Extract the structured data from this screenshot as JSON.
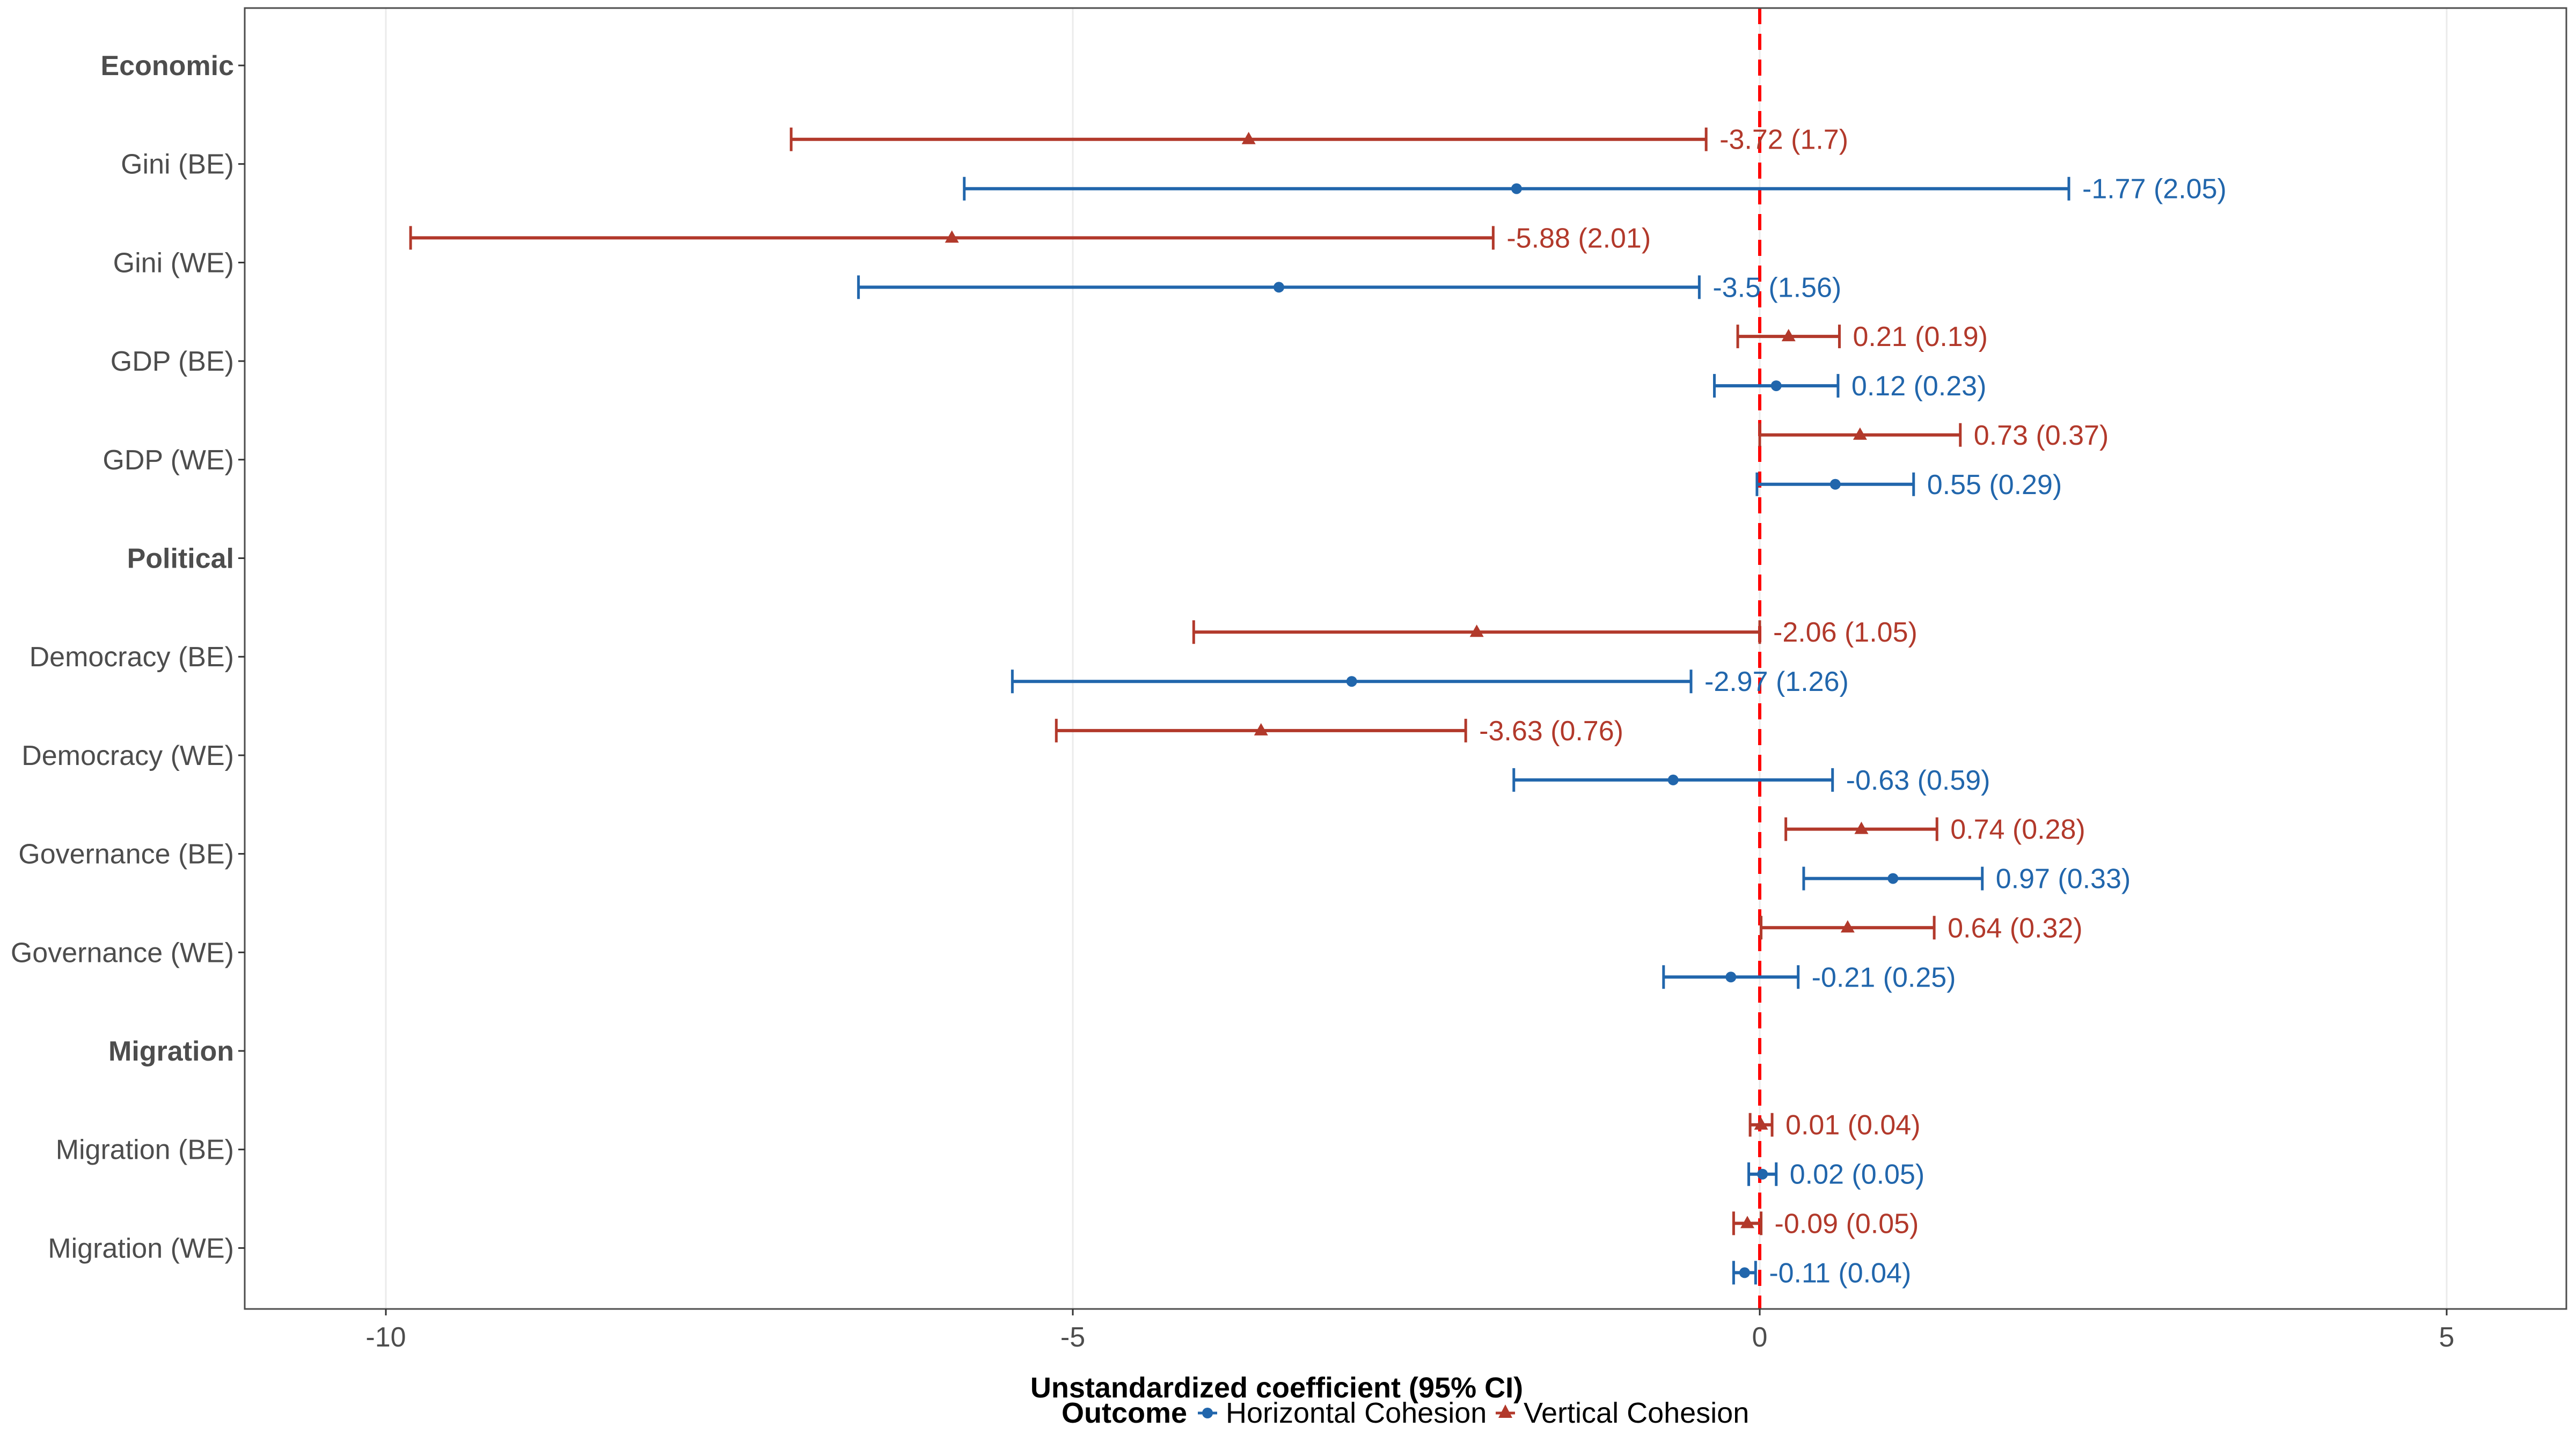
{
  "chart_data": {
    "type": "forest",
    "title": "",
    "xlabel": "Unstandardized coefficient (95% CI)",
    "ylabel": "",
    "xlim": [
      -11,
      5.9
    ],
    "x_ticks": [
      -10,
      -5,
      0,
      5
    ],
    "x_tick_labels": [
      "-10",
      "-5",
      "0",
      "5"
    ],
    "reference_line": {
      "x": 0,
      "style": "dashed",
      "color": "#ff0000"
    },
    "grid": "vertical major gridlines",
    "legend": {
      "title": "Outcome",
      "position": "bottom",
      "entries": [
        {
          "name": "Horizontal Cohesion",
          "shape": "circle",
          "color": "#2166ac"
        },
        {
          "name": "Vertical Cohesion",
          "shape": "triangle",
          "color": "#b2392b"
        }
      ]
    },
    "rows": [
      {
        "label": "Economic",
        "group_header": true
      },
      {
        "label": "Gini (BE)",
        "group_header": false
      },
      {
        "label": "Gini (WE)",
        "group_header": false
      },
      {
        "label": "GDP (BE)",
        "group_header": false
      },
      {
        "label": "GDP (WE)",
        "group_header": false
      },
      {
        "label": "Political",
        "group_header": true
      },
      {
        "label": "Democracy (BE)",
        "group_header": false
      },
      {
        "label": "Democracy (WE)",
        "group_header": false
      },
      {
        "label": "Governance (BE)",
        "group_header": false
      },
      {
        "label": "Governance (WE)",
        "group_header": false
      },
      {
        "label": "Migration",
        "group_header": true
      },
      {
        "label": "Migration (BE)",
        "group_header": false
      },
      {
        "label": "Migration (WE)",
        "group_header": false
      }
    ],
    "series": [
      {
        "name": "Vertical Cohesion",
        "shape": "triangle",
        "color": "#b2392b",
        "points": [
          {
            "row": "Gini (BE)",
            "estimate": -3.72,
            "se": 1.7,
            "ci": [
              -7.05,
              -0.39
            ],
            "label": "-3.72 (1.7)"
          },
          {
            "row": "Gini (WE)",
            "estimate": -5.88,
            "se": 2.01,
            "ci": [
              -9.82,
              -1.94
            ],
            "label": "-5.88 (2.01)"
          },
          {
            "row": "GDP (BE)",
            "estimate": 0.21,
            "se": 0.19,
            "ci": [
              -0.16,
              0.58
            ],
            "label": "0.21 (0.19)"
          },
          {
            "row": "GDP (WE)",
            "estimate": 0.73,
            "se": 0.37,
            "ci": [
              0.0,
              1.46
            ],
            "label": "0.73 (0.37)"
          },
          {
            "row": "Democracy (BE)",
            "estimate": -2.06,
            "se": 1.05,
            "ci": [
              -4.12,
              0.0
            ],
            "label": "-2.06 (1.05)"
          },
          {
            "row": "Democracy (WE)",
            "estimate": -3.63,
            "se": 0.76,
            "ci": [
              -5.12,
              -2.14
            ],
            "label": "-3.63 (0.76)"
          },
          {
            "row": "Governance (BE)",
            "estimate": 0.74,
            "se": 0.28,
            "ci": [
              0.19,
              1.29
            ],
            "label": "0.74 (0.28)"
          },
          {
            "row": "Governance (WE)",
            "estimate": 0.64,
            "se": 0.32,
            "ci": [
              0.01,
              1.27
            ],
            "label": "0.64 (0.32)"
          },
          {
            "row": "Migration (BE)",
            "estimate": 0.01,
            "se": 0.04,
            "ci": [
              -0.07,
              0.09
            ],
            "label": "0.01 (0.04)"
          },
          {
            "row": "Migration (WE)",
            "estimate": -0.09,
            "se": 0.05,
            "ci": [
              -0.19,
              0.01
            ],
            "label": "-0.09 (0.05)"
          }
        ]
      },
      {
        "name": "Horizontal Cohesion",
        "shape": "circle",
        "color": "#2166ac",
        "points": [
          {
            "row": "Gini (BE)",
            "estimate": -1.77,
            "se": 2.05,
            "ci": [
              -5.79,
              2.25
            ],
            "label": "-1.77 (2.05)"
          },
          {
            "row": "Gini (WE)",
            "estimate": -3.5,
            "se": 1.56,
            "ci": [
              -6.56,
              -0.44
            ],
            "label": "-3.5 (1.56)"
          },
          {
            "row": "GDP (BE)",
            "estimate": 0.12,
            "se": 0.23,
            "ci": [
              -0.33,
              0.57
            ],
            "label": "0.12 (0.23)"
          },
          {
            "row": "GDP (WE)",
            "estimate": 0.55,
            "se": 0.29,
            "ci": [
              -0.02,
              1.12
            ],
            "label": "0.55 (0.29)"
          },
          {
            "row": "Democracy (BE)",
            "estimate": -2.97,
            "se": 1.26,
            "ci": [
              -5.44,
              -0.5
            ],
            "label": "-2.97 (1.26)"
          },
          {
            "row": "Democracy (WE)",
            "estimate": -0.63,
            "se": 0.59,
            "ci": [
              -1.79,
              0.53
            ],
            "label": "-0.63 (0.59)"
          },
          {
            "row": "Governance (BE)",
            "estimate": 0.97,
            "se": 0.33,
            "ci": [
              0.32,
              1.62
            ],
            "label": "0.97 (0.33)"
          },
          {
            "row": "Governance (WE)",
            "estimate": -0.21,
            "se": 0.25,
            "ci": [
              -0.7,
              0.28
            ],
            "label": "-0.21 (0.25)"
          },
          {
            "row": "Migration (BE)",
            "estimate": 0.02,
            "se": 0.05,
            "ci": [
              -0.08,
              0.12
            ],
            "label": "0.02 (0.05)"
          },
          {
            "row": "Migration (WE)",
            "estimate": -0.11,
            "se": 0.04,
            "ci": [
              -0.19,
              -0.03
            ],
            "label": "-0.11 (0.04)"
          }
        ]
      }
    ]
  }
}
